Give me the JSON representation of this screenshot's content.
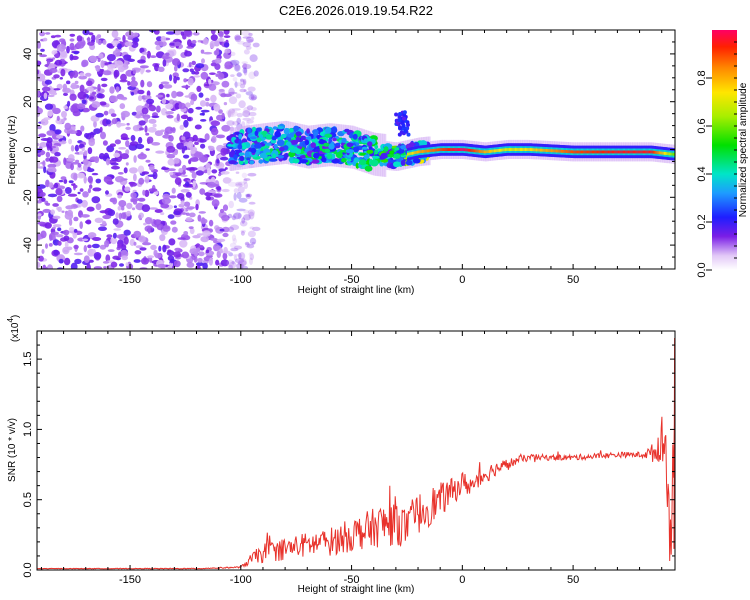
{
  "chart_data": [
    {
      "type": "heatmap",
      "title": "C2E6.2026.019.19.54.R22",
      "xlabel": "Height of straight line (km)",
      "ylabel": "Frequency (Hz)",
      "xlim": [
        -192,
        96
      ],
      "ylim": [
        -50,
        50
      ],
      "x_ticks": [
        -150,
        -100,
        -50,
        0,
        50
      ],
      "y_ticks": [
        -40,
        -20,
        0,
        20,
        40
      ],
      "ridge": {
        "description_values": "dominant frequency ridge along height",
        "x": [
          -105,
          -90,
          -80,
          -70,
          -60,
          -50,
          -40,
          -30,
          -20,
          -10,
          0,
          10,
          20,
          30,
          50,
          70,
          85,
          95
        ],
        "freq": [
          0,
          2,
          3,
          1,
          2,
          1,
          -2,
          -3,
          -1,
          0,
          0,
          -1,
          0,
          0,
          -1,
          -1,
          -1,
          -2
        ],
        "amplitude": [
          0.35,
          0.45,
          0.5,
          0.5,
          0.45,
          0.5,
          0.55,
          0.6,
          0.8,
          0.9,
          1.0,
          0.8,
          0.7,
          0.75,
          0.9,
          0.95,
          0.95,
          0.6
        ]
      },
      "noise_region_x": [
        -192,
        -105
      ],
      "colorbar": {
        "label": "Normalized spectral amplitude",
        "range": [
          0.0,
          1.0
        ],
        "ticks": [
          0.0,
          0.2,
          0.4,
          0.6,
          0.8
        ],
        "tick_labels": [
          "0.0",
          "0.2",
          "0.4",
          "0.6",
          "0.8"
        ]
      }
    },
    {
      "type": "line",
      "title": "",
      "xlabel": "Height of straight line (km)",
      "ylabel": "SNR (10 * v/v)",
      "scale_label": "(x10",
      "scale_exponent": "4",
      "scale_close": ")",
      "xlim": [
        -192,
        96
      ],
      "ylim": [
        0,
        1.7
      ],
      "x_ticks": [
        -150,
        -100,
        -50,
        0,
        50
      ],
      "y_ticks": [
        0.0,
        0.5,
        1.0,
        1.5
      ],
      "y_tick_labels": [
        "0.0",
        "0.5",
        "1.0",
        "1.5"
      ],
      "series": [
        {
          "name": "SNR",
          "color": "#e8322b",
          "x": [
            -192,
            -150,
            -120,
            -100,
            -95,
            -90,
            -80,
            -70,
            -60,
            -50,
            -40,
            -30,
            -25,
            -20,
            -15,
            -10,
            -5,
            0,
            5,
            10,
            15,
            20,
            25,
            30,
            40,
            50,
            60,
            70,
            80,
            85,
            88,
            90,
            92,
            94,
            96
          ],
          "values": [
            0.01,
            0.01,
            0.01,
            0.02,
            0.08,
            0.12,
            0.15,
            0.18,
            0.2,
            0.25,
            0.3,
            0.35,
            0.3,
            0.4,
            0.45,
            0.5,
            0.55,
            0.62,
            0.6,
            0.68,
            0.72,
            0.75,
            0.78,
            0.8,
            0.8,
            0.8,
            0.81,
            0.82,
            0.82,
            0.83,
            0.85,
            0.95,
            0.85,
            0.2,
            1.2
          ],
          "noise_amplitude": [
            0.002,
            0.002,
            0.003,
            0.005,
            0.04,
            0.07,
            0.08,
            0.09,
            0.1,
            0.12,
            0.14,
            0.18,
            0.12,
            0.15,
            0.14,
            0.12,
            0.1,
            0.08,
            0.08,
            0.07,
            0.05,
            0.04,
            0.03,
            0.025,
            0.02,
            0.02,
            0.02,
            0.02,
            0.02,
            0.05,
            0.12,
            0.15,
            0.2,
            0.3,
            0.2
          ]
        }
      ]
    }
  ]
}
